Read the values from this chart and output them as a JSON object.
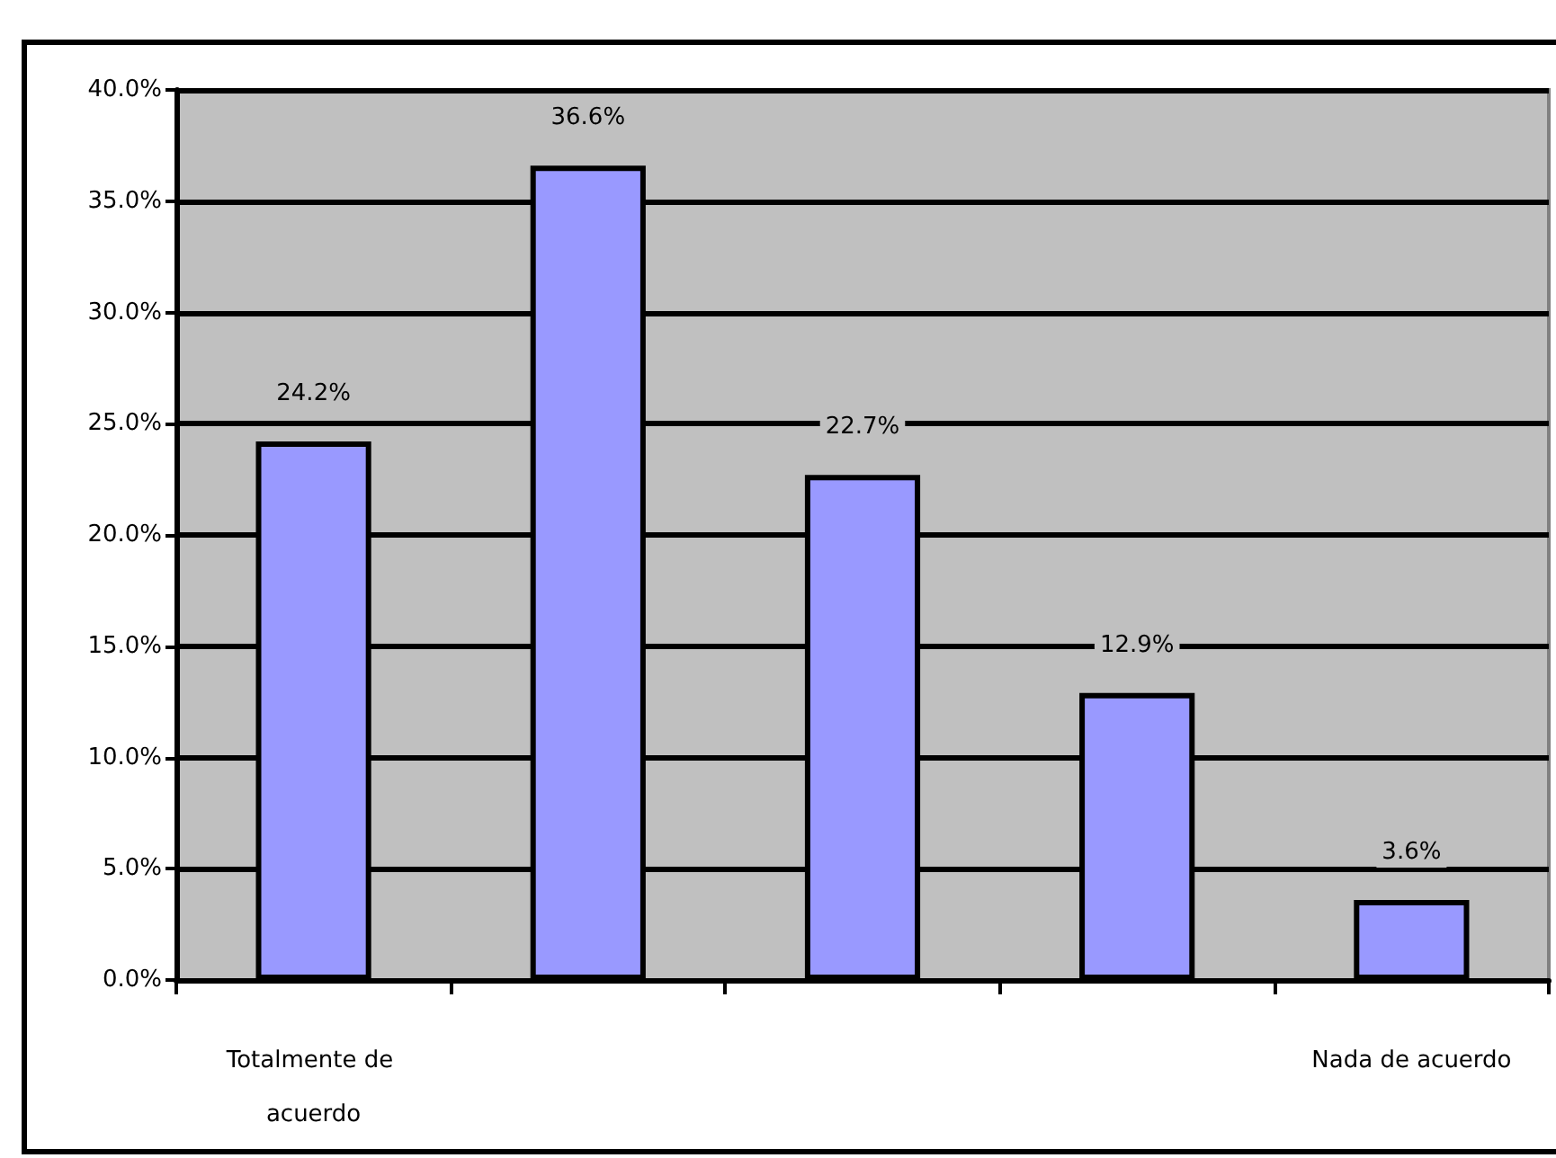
{
  "chart_data": {
    "type": "bar",
    "categories": [
      "Totalmente de acuerdo",
      null,
      null,
      null,
      "Nada de acuerdo"
    ],
    "values": [
      24.2,
      36.6,
      22.7,
      12.9,
      3.6
    ],
    "color": "#9999ff",
    "value_labels": [
      "24.2%",
      "36.6%",
      "22.7%",
      "12.9%",
      "3.6%"
    ],
    "ylim": [
      0,
      40
    ],
    "yticks": [
      {
        "value": 0,
        "label": "0.0%"
      },
      {
        "value": 5,
        "label": "5.0%"
      },
      {
        "value": 10,
        "label": "10.0%"
      },
      {
        "value": 15,
        "label": "15.0%"
      },
      {
        "value": 20,
        "label": "20.0%"
      },
      {
        "value": 25,
        "label": "25.0%"
      },
      {
        "value": 30,
        "label": "30.0%"
      },
      {
        "value": 35,
        "label": "35.0%"
      },
      {
        "value": 40,
        "label": "40.0%"
      }
    ],
    "grid": "y"
  }
}
